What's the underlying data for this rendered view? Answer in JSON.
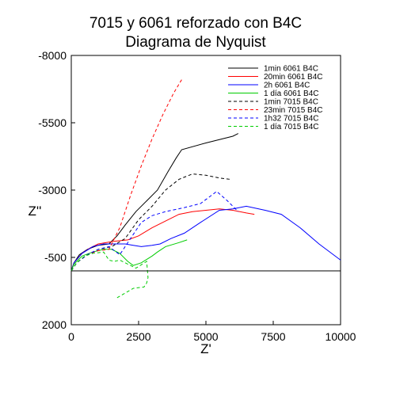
{
  "chart_data": {
    "type": "line",
    "title": "7015 y 6061 reforzado con B4C",
    "subtitle": "Diagrama de Nyquist",
    "xlabel": "Z'",
    "ylabel": "Z''",
    "xlim": [
      0,
      10000
    ],
    "ylim": [
      2000,
      -8000
    ],
    "y_inverted": true,
    "x_ticks": [
      "0",
      "2500",
      "5000",
      "7500",
      "10000"
    ],
    "y_ticks": [
      "-8000",
      "-5500",
      "-3000",
      "-500",
      "2000"
    ],
    "legend_position": "top-right",
    "zero_line": 0,
    "series": [
      {
        "name": "1min 6061 B4C",
        "color": "#000000",
        "dash": "solid",
        "points": [
          [
            0,
            0
          ],
          [
            100,
            -300
          ],
          [
            300,
            -600
          ],
          [
            600,
            -800
          ],
          [
            1000,
            -950
          ],
          [
            1400,
            -1000
          ],
          [
            1700,
            -1300
          ],
          [
            2000,
            -1700
          ],
          [
            2400,
            -2200
          ],
          [
            2800,
            -2600
          ],
          [
            3200,
            -3000
          ],
          [
            3600,
            -3700
          ],
          [
            3900,
            -4200
          ],
          [
            4100,
            -4500
          ],
          [
            5000,
            -4750
          ],
          [
            6000,
            -5000
          ],
          [
            6200,
            -5100
          ]
        ]
      },
      {
        "name": "20min 6061 B4C",
        "color": "#ff0000",
        "dash": "solid",
        "points": [
          [
            0,
            0
          ],
          [
            100,
            -300
          ],
          [
            400,
            -650
          ],
          [
            700,
            -850
          ],
          [
            1000,
            -1000
          ],
          [
            1300,
            -1050
          ],
          [
            1600,
            -1100
          ],
          [
            2100,
            -1150
          ],
          [
            2500,
            -1300
          ],
          [
            3000,
            -1600
          ],
          [
            3500,
            -1850
          ],
          [
            4000,
            -2100
          ],
          [
            4500,
            -2200
          ],
          [
            5000,
            -2250
          ],
          [
            5500,
            -2300
          ],
          [
            6000,
            -2250
          ],
          [
            6500,
            -2150
          ],
          [
            6800,
            -2100
          ]
        ]
      },
      {
        "name": "2h 6061 B4C",
        "color": "#0000ff",
        "dash": "solid",
        "points": [
          [
            0,
            0
          ],
          [
            100,
            -300
          ],
          [
            400,
            -650
          ],
          [
            800,
            -900
          ],
          [
            1200,
            -1000
          ],
          [
            1600,
            -1000
          ],
          [
            2000,
            -1000
          ],
          [
            2300,
            -950
          ],
          [
            2600,
            -900
          ],
          [
            3000,
            -950
          ],
          [
            3300,
            -1000
          ],
          [
            3700,
            -1200
          ],
          [
            4200,
            -1400
          ],
          [
            4800,
            -1800
          ],
          [
            5500,
            -2250
          ],
          [
            6000,
            -2300
          ],
          [
            6500,
            -2400
          ],
          [
            7200,
            -2250
          ],
          [
            7800,
            -2100
          ],
          [
            8500,
            -1600
          ],
          [
            9200,
            -1000
          ],
          [
            10000,
            -400
          ]
        ]
      },
      {
        "name": "1 día 6061 B4C",
        "color": "#00cc00",
        "dash": "solid",
        "points": [
          [
            0,
            0
          ],
          [
            100,
            -250
          ],
          [
            400,
            -550
          ],
          [
            800,
            -700
          ],
          [
            1200,
            -800
          ],
          [
            1500,
            -800
          ],
          [
            1800,
            -650
          ],
          [
            2100,
            -350
          ],
          [
            2300,
            -200
          ],
          [
            2600,
            -300
          ],
          [
            3000,
            -550
          ],
          [
            3200,
            -700
          ],
          [
            3500,
            -900
          ],
          [
            4000,
            -1050
          ],
          [
            4300,
            -1150
          ]
        ]
      },
      {
        "name": "1min 7015 B4C",
        "color": "#000000",
        "dash": "dashed",
        "points": [
          [
            0,
            0
          ],
          [
            200,
            -300
          ],
          [
            600,
            -600
          ],
          [
            1000,
            -800
          ],
          [
            1500,
            -900
          ],
          [
            2000,
            -1200
          ],
          [
            2500,
            -1900
          ],
          [
            3000,
            -2400
          ],
          [
            3500,
            -3000
          ],
          [
            4000,
            -3400
          ],
          [
            4500,
            -3600
          ],
          [
            5000,
            -3550
          ],
          [
            5500,
            -3450
          ],
          [
            5900,
            -3400
          ]
        ]
      },
      {
        "name": "23min 7015 B4C",
        "color": "#ff0000",
        "dash": "dashed",
        "points": [
          [
            0,
            0
          ],
          [
            200,
            -300
          ],
          [
            600,
            -600
          ],
          [
            1000,
            -750
          ],
          [
            1400,
            -800
          ],
          [
            1800,
            -1600
          ],
          [
            2200,
            -2800
          ],
          [
            2600,
            -3900
          ],
          [
            3000,
            -4900
          ],
          [
            3400,
            -5800
          ],
          [
            3800,
            -6600
          ],
          [
            4100,
            -7100
          ]
        ]
      },
      {
        "name": "1h32 7015 B4C",
        "color": "#0000ff",
        "dash": "dashed",
        "points": [
          [
            0,
            0
          ],
          [
            200,
            -300
          ],
          [
            600,
            -600
          ],
          [
            1000,
            -800
          ],
          [
            1400,
            -900
          ],
          [
            1800,
            -600
          ],
          [
            2200,
            -1200
          ],
          [
            2600,
            -1800
          ],
          [
            3000,
            -2050
          ],
          [
            3500,
            -2200
          ],
          [
            4200,
            -2350
          ],
          [
            4800,
            -2500
          ],
          [
            5400,
            -2950
          ],
          [
            5800,
            -2600
          ],
          [
            6200,
            -2200
          ]
        ]
      },
      {
        "name": "1 día 7015 B4C",
        "color": "#00cc00",
        "dash": "dashed",
        "points": [
          [
            0,
            0
          ],
          [
            200,
            -300
          ],
          [
            500,
            -550
          ],
          [
            800,
            -650
          ],
          [
            1200,
            -700
          ],
          [
            1400,
            -400
          ],
          [
            1600,
            -350
          ],
          [
            1800,
            -400
          ],
          [
            2000,
            -300
          ],
          [
            2400,
            -100
          ],
          [
            2800,
            -350
          ],
          [
            2850,
            250
          ],
          [
            2800,
            450
          ],
          [
            2700,
            600
          ],
          [
            2300,
            650
          ],
          [
            1700,
            1000
          ]
        ]
      }
    ]
  }
}
